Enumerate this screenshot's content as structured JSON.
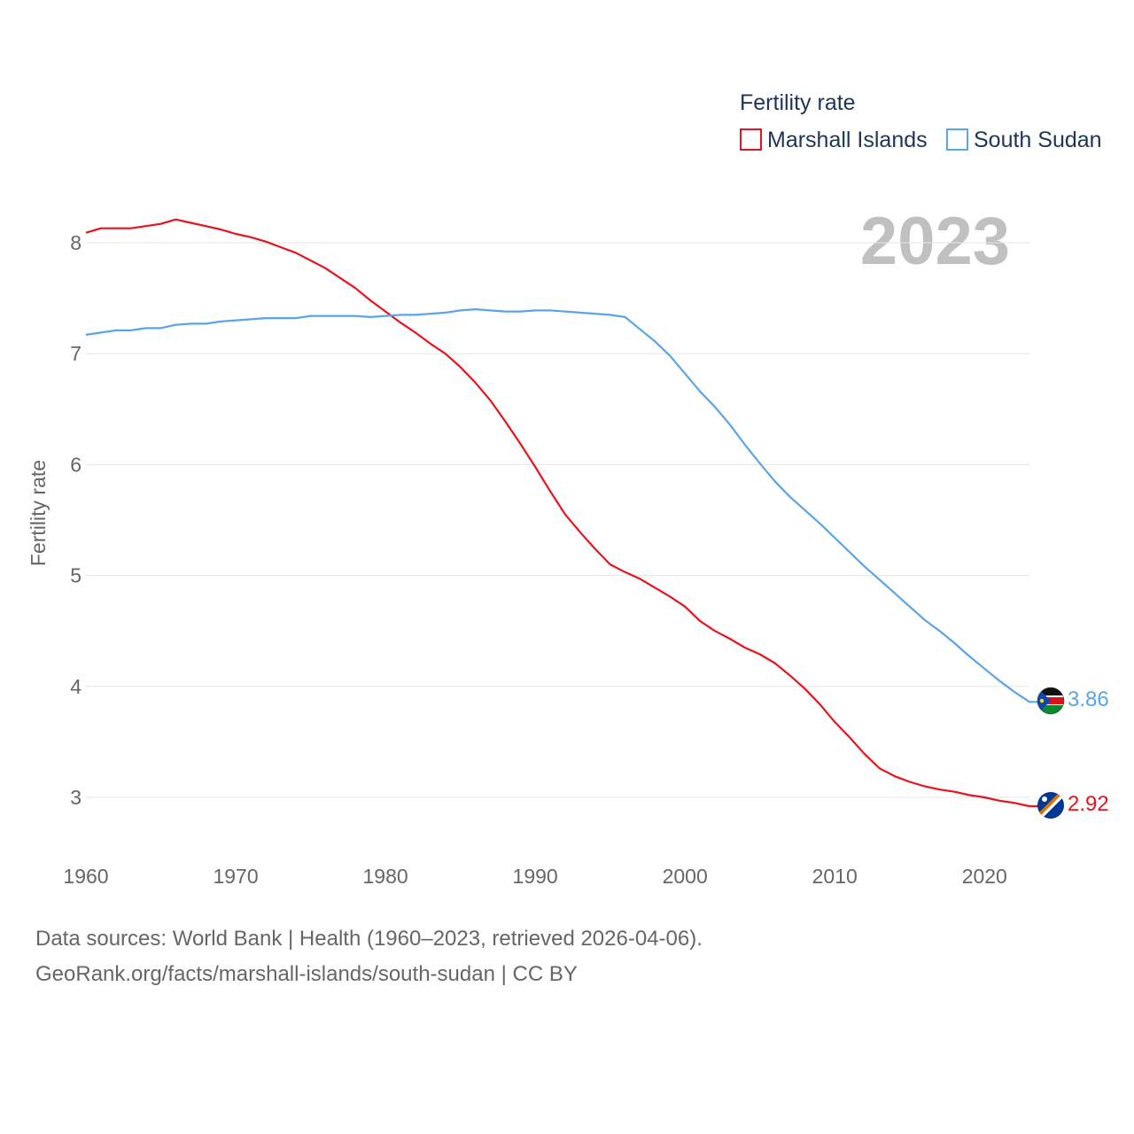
{
  "chart_data": {
    "type": "line",
    "ylabel": "Fertility rate",
    "ylim": [
      2.5,
      8.4
    ],
    "xlim": [
      1960,
      2024
    ],
    "y_ticks": [
      3,
      4,
      5,
      6,
      7,
      8
    ],
    "x_ticks": [
      1960,
      1970,
      1980,
      1990,
      2000,
      2010,
      2020
    ],
    "grid": true,
    "legend": {
      "title": "Fertility rate",
      "position": "top-right"
    },
    "year_label": "2023",
    "x": [
      1960,
      1961,
      1962,
      1963,
      1964,
      1965,
      1966,
      1967,
      1968,
      1969,
      1970,
      1971,
      1972,
      1973,
      1974,
      1975,
      1976,
      1977,
      1978,
      1979,
      1980,
      1981,
      1982,
      1983,
      1984,
      1985,
      1986,
      1987,
      1988,
      1989,
      1990,
      1991,
      1992,
      1993,
      1994,
      1995,
      1996,
      1997,
      1998,
      1999,
      2000,
      2001,
      2002,
      2003,
      2004,
      2005,
      2006,
      2007,
      2008,
      2009,
      2010,
      2011,
      2012,
      2013,
      2014,
      2015,
      2016,
      2017,
      2018,
      2019,
      2020,
      2021,
      2022,
      2023
    ],
    "series": [
      {
        "name": "Marshall Islands",
        "color": "#e8141d",
        "end_label": "2.92",
        "values": [
          8.09,
          8.13,
          8.13,
          8.13,
          8.15,
          8.17,
          8.21,
          8.18,
          8.15,
          8.12,
          8.08,
          8.05,
          8.01,
          7.96,
          7.91,
          7.84,
          7.77,
          7.68,
          7.59,
          7.48,
          7.38,
          7.28,
          7.19,
          7.09,
          7.0,
          6.88,
          6.74,
          6.58,
          6.39,
          6.19,
          5.98,
          5.76,
          5.55,
          5.39,
          5.24,
          5.1,
          5.03,
          4.97,
          4.89,
          4.81,
          4.72,
          4.59,
          4.5,
          4.43,
          4.35,
          4.29,
          4.21,
          4.1,
          3.98,
          3.84,
          3.68,
          3.54,
          3.39,
          3.26,
          3.19,
          3.14,
          3.1,
          3.07,
          3.05,
          3.02,
          3.0,
          2.97,
          2.95,
          2.92
        ]
      },
      {
        "name": "South Sudan",
        "color": "#5ba4e5",
        "end_label": "3.86",
        "values": [
          7.17,
          7.19,
          7.21,
          7.21,
          7.23,
          7.23,
          7.26,
          7.27,
          7.27,
          7.29,
          7.3,
          7.31,
          7.32,
          7.32,
          7.32,
          7.34,
          7.34,
          7.34,
          7.34,
          7.33,
          7.34,
          7.35,
          7.35,
          7.36,
          7.37,
          7.39,
          7.4,
          7.39,
          7.38,
          7.38,
          7.39,
          7.39,
          7.38,
          7.37,
          7.36,
          7.35,
          7.33,
          7.22,
          7.11,
          6.98,
          6.82,
          6.66,
          6.52,
          6.36,
          6.18,
          6.01,
          5.85,
          5.71,
          5.59,
          5.47,
          5.34,
          5.21,
          5.08,
          4.96,
          4.84,
          4.72,
          4.6,
          4.5,
          4.39,
          4.27,
          4.16,
          4.05,
          3.95,
          3.86
        ]
      }
    ]
  },
  "footer": {
    "source_line": "Data sources: World Bank | Health (1960–2023, retrieved 2026-04-06).",
    "url_line": "GeoRank.org/facts/marshall-islands/south-sudan | CC BY"
  }
}
